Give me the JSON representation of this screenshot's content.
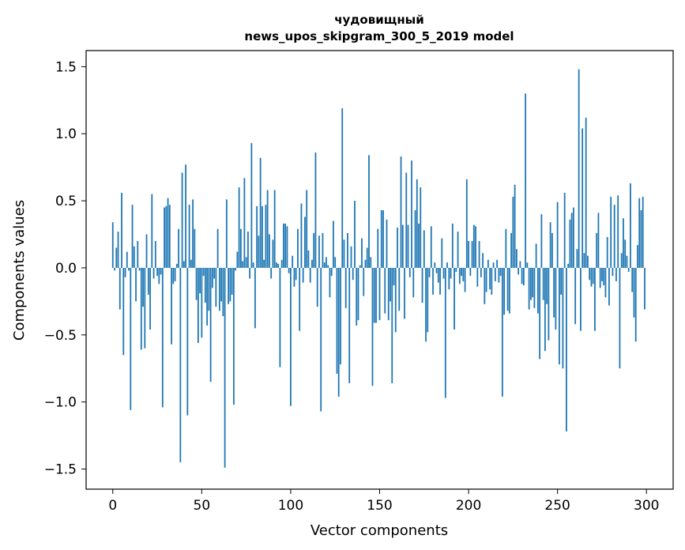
{
  "chart_data": {
    "type": "bar",
    "title": "чудовищный",
    "subtitle": "news_upos_skipgram_300_5_2019 model",
    "xlabel": "Vector components",
    "ylabel": "Components values",
    "xlim": [
      -15,
      315
    ],
    "ylim": [
      -1.65,
      1.62
    ],
    "xticks": [
      0,
      50,
      100,
      150,
      200,
      250,
      300
    ],
    "xtick_labels": [
      "0",
      "50",
      "100",
      "150",
      "200",
      "250",
      "300"
    ],
    "yticks": [
      -1.5,
      -1.0,
      -0.5,
      0.0,
      0.5,
      1.0,
      1.5
    ],
    "ytick_labels": [
      "−1.5",
      "−1.0",
      "−0.5",
      "0.0",
      "0.5",
      "1.0",
      "1.5"
    ],
    "bar_color": "#1f77b4",
    "grid": false,
    "legend": false,
    "series": [
      {
        "name": "components",
        "values": [
          0.34,
          -0.02,
          0.15,
          0.27,
          -0.31,
          0.56,
          -0.65,
          -0.07,
          0.12,
          -0.02,
          -1.06,
          0.47,
          0.16,
          -0.25,
          0.2,
          -0.02,
          -0.61,
          -0.29,
          -0.6,
          0.25,
          -0.2,
          -0.46,
          0.55,
          -0.08,
          0.2,
          -0.06,
          -0.12,
          -0.05,
          -1.04,
          0.45,
          0.46,
          0.52,
          0.47,
          -0.57,
          -0.12,
          -0.1,
          0.03,
          0.29,
          -1.45,
          0.71,
          0.05,
          0.77,
          -1.1,
          0.47,
          0.06,
          0.51,
          0.29,
          -0.24,
          -0.56,
          -0.19,
          -0.52,
          -0.06,
          -0.26,
          -0.43,
          -0.32,
          -0.85,
          -0.15,
          -0.08,
          -0.29,
          0.29,
          -0.32,
          -0.25,
          -0.36,
          -1.49,
          0.51,
          -0.27,
          -0.25,
          -0.2,
          -1.02,
          -0.02,
          0.12,
          0.6,
          0.29,
          0.05,
          0.67,
          0.08,
          0.27,
          -0.08,
          0.93,
          0.04,
          -0.45,
          0.46,
          0.24,
          0.82,
          0.46,
          0.06,
          0.47,
          0.58,
          0.25,
          -0.08,
          0.21,
          0.58,
          0.04,
          0.03,
          -0.74,
          0.06,
          0.33,
          0.33,
          0.31,
          -0.04,
          -1.03,
          0.09,
          -0.14,
          -0.09,
          0.29,
          -0.47,
          0.48,
          -0.11,
          0.38,
          0.58,
          0.13,
          -0.11,
          0.06,
          0.26,
          0.86,
          -0.29,
          0.24,
          -1.07,
          0.26,
          0.04,
          0.08,
          0.02,
          -0.22,
          -0.06,
          0.35,
          0.08,
          -0.79,
          -0.96,
          -0.72,
          1.19,
          0.21,
          -0.3,
          0.26,
          -0.86,
          0.16,
          -0.09,
          0.5,
          -0.43,
          -0.39,
          0.02,
          0.22,
          -0.21,
          0.06,
          0.15,
          0.84,
          0.08,
          -0.88,
          -0.41,
          -0.41,
          0.29,
          -0.39,
          0.43,
          0.43,
          -0.34,
          0.36,
          -0.39,
          -0.25,
          -0.86,
          -0.13,
          -0.48,
          0.3,
          -0.32,
          0.83,
          0.32,
          -0.38,
          0.71,
          0.32,
          -0.07,
          0.8,
          -0.22,
          0.43,
          0.66,
          0.33,
          0.6,
          -0.26,
          0.28,
          -0.55,
          -0.48,
          -0.07,
          0.31,
          -0.2,
          0.04,
          -0.04,
          -0.11,
          -0.2,
          0.22,
          -0.08,
          -0.97,
          0.04,
          -0.16,
          -0.08,
          0.33,
          -0.46,
          -0.03,
          0.27,
          -0.12,
          -0.06,
          -0.1,
          -0.18,
          0.66,
          0.2,
          -0.06,
          0.2,
          0.32,
          0.31,
          -0.14,
          0.2,
          -0.07,
          0.11,
          -0.27,
          -0.18,
          0.06,
          -0.16,
          -0.2,
          0.04,
          -0.1,
          0.06,
          -0.11,
          -0.06,
          -0.96,
          -0.35,
          0.29,
          -0.32,
          -0.34,
          0.26,
          0.53,
          0.62,
          0.14,
          -0.05,
          0.05,
          -0.12,
          -0.13,
          1.3,
          0.04,
          -0.31,
          -0.24,
          -0.22,
          -0.3,
          0.18,
          -0.34,
          -0.68,
          0.4,
          -0.24,
          -0.62,
          -0.27,
          -0.54,
          0.34,
          0.26,
          -0.37,
          -0.46,
          0.49,
          -0.72,
          -0.2,
          -0.75,
          0.56,
          -1.22,
          0.03,
          0.36,
          0.41,
          0.45,
          -0.42,
          0.14,
          1.48,
          -0.47,
          1.04,
          0.11,
          1.12,
          0.09,
          -0.09,
          -0.14,
          -0.12,
          -0.47,
          0.26,
          0.41,
          -0.15,
          -0.1,
          -0.13,
          -0.22,
          0.23,
          -0.28,
          0.53,
          -0.06,
          0.47,
          -0.1,
          0.54,
          -0.75,
          0.11,
          0.37,
          0.21,
          0.09,
          -0.03,
          0.63,
          -0.18,
          -0.37,
          -0.55,
          0.17,
          0.52,
          0.43,
          0.53,
          -0.31
        ]
      }
    ]
  }
}
